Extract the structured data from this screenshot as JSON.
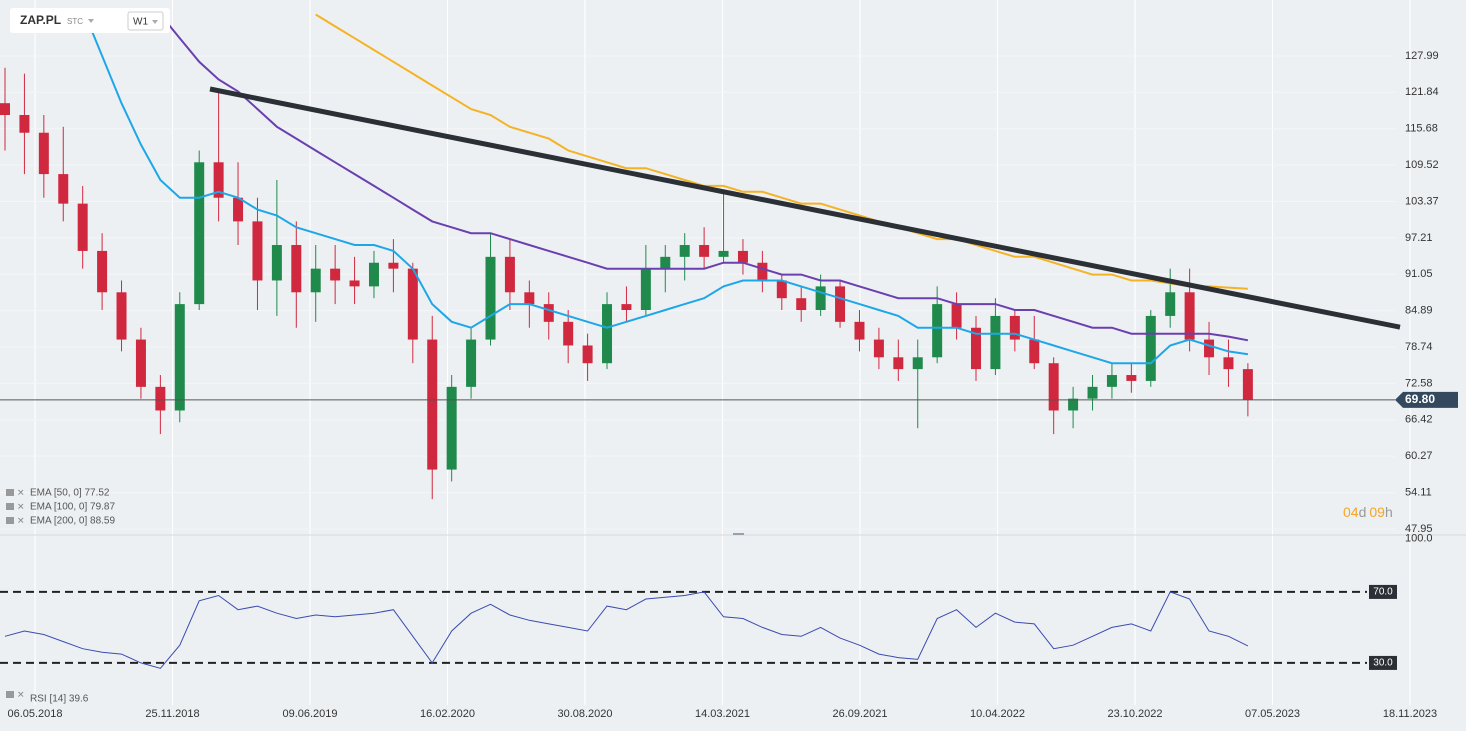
{
  "chart_data": [
    {
      "type": "candlestick",
      "symbol": "ZAP.PL",
      "exchange": "STC",
      "interval": "W1",
      "up_color": "#1f8a4c",
      "down_color": "#d0283f",
      "candles": [
        [
          120,
          126,
          112,
          118
        ],
        [
          118,
          125,
          108,
          115
        ],
        [
          115,
          118,
          104,
          108
        ],
        [
          108,
          116,
          100,
          103
        ],
        [
          103,
          106,
          92,
          95
        ],
        [
          95,
          98,
          85,
          88
        ],
        [
          88,
          90,
          78,
          80
        ],
        [
          80,
          82,
          70,
          72
        ],
        [
          72,
          74,
          64,
          68
        ],
        [
          68,
          88,
          66,
          86
        ],
        [
          86,
          112,
          85,
          110
        ],
        [
          110,
          122,
          100,
          104
        ],
        [
          104,
          110,
          96,
          100
        ],
        [
          100,
          104,
          85,
          90
        ],
        [
          90,
          107,
          84,
          96
        ],
        [
          96,
          100,
          82,
          88
        ],
        [
          88,
          96,
          83,
          92
        ],
        [
          92,
          96,
          86,
          90
        ],
        [
          90,
          94,
          86,
          89
        ],
        [
          89,
          95,
          87,
          93
        ],
        [
          93,
          97,
          88,
          92
        ],
        [
          92,
          93,
          76,
          80
        ],
        [
          80,
          84,
          53,
          58
        ],
        [
          58,
          74,
          56,
          72
        ],
        [
          72,
          82,
          70,
          80
        ],
        [
          80,
          98,
          79,
          94
        ],
        [
          94,
          97,
          85,
          88
        ],
        [
          88,
          90,
          82,
          86
        ],
        [
          86,
          88,
          80,
          83
        ],
        [
          83,
          85,
          76,
          79
        ],
        [
          79,
          81,
          73,
          76
        ],
        [
          76,
          88,
          75,
          86
        ],
        [
          86,
          89,
          83,
          85
        ],
        [
          85,
          96,
          84,
          92
        ],
        [
          92,
          96,
          88,
          94
        ],
        [
          94,
          98,
          90,
          96
        ],
        [
          96,
          99,
          92,
          94
        ],
        [
          94,
          105,
          93,
          95
        ],
        [
          95,
          97,
          91,
          93
        ],
        [
          93,
          95,
          88,
          90
        ],
        [
          90,
          91,
          85,
          87
        ],
        [
          87,
          89,
          83,
          85
        ],
        [
          85,
          91,
          84,
          89
        ],
        [
          89,
          90,
          82,
          83
        ],
        [
          83,
          85,
          78,
          80
        ],
        [
          80,
          82,
          75,
          77
        ],
        [
          77,
          80,
          73,
          75
        ],
        [
          75,
          80,
          65,
          77
        ],
        [
          77,
          89,
          76,
          86
        ],
        [
          86,
          88,
          80,
          82
        ],
        [
          82,
          84,
          73,
          75
        ],
        [
          75,
          87,
          74,
          84
        ],
        [
          84,
          85,
          78,
          80
        ],
        [
          80,
          84,
          75,
          76
        ],
        [
          76,
          77,
          64,
          68
        ],
        [
          68,
          72,
          65,
          70
        ],
        [
          70,
          74,
          68,
          72
        ],
        [
          72,
          76,
          70,
          74
        ],
        [
          74,
          76,
          71,
          73
        ],
        [
          73,
          85,
          72,
          84
        ],
        [
          84,
          92,
          82,
          88
        ],
        [
          88,
          92,
          78,
          80
        ],
        [
          80,
          83,
          74,
          77
        ],
        [
          77,
          80,
          72,
          75
        ],
        [
          75,
          76,
          67,
          69.8
        ]
      ],
      "series": [
        {
          "name": "EMA [50, 0] 77.52",
          "color": "#1ea7e8",
          "values": [
            null,
            null,
            null,
            null,
            136,
            128,
            120,
            113,
            107,
            104,
            104,
            105,
            104,
            102,
            101,
            99,
            98,
            97,
            96,
            96,
            95,
            92,
            86,
            83,
            82,
            84,
            86,
            86,
            85,
            84,
            83,
            82,
            83,
            84,
            85,
            86,
            87,
            89,
            90,
            90,
            90,
            89,
            88,
            87,
            86,
            85,
            84,
            82,
            82,
            82,
            81,
            81,
            81,
            80,
            79,
            78,
            77,
            76,
            76,
            76,
            79,
            80,
            79,
            78,
            77.52
          ]
        },
        {
          "name": "EMA [100, 0] 79.87",
          "color": "#6a3fb0",
          "values": [
            null,
            null,
            null,
            null,
            null,
            null,
            null,
            null,
            135,
            131,
            127,
            124,
            122,
            119,
            116,
            114,
            112,
            110,
            108,
            106,
            104,
            102,
            100,
            99,
            98,
            98,
            97,
            96,
            95,
            94,
            93,
            92,
            92,
            92,
            92,
            92,
            92,
            93,
            93,
            92,
            91,
            91,
            90,
            90,
            89,
            88,
            87,
            87,
            87,
            86,
            86,
            86,
            85,
            85,
            84,
            83,
            82,
            82,
            81,
            81,
            81,
            81,
            81,
            80.5,
            79.87
          ]
        },
        {
          "name": "EMA [200, 0] 88.59",
          "color": "#f5b324",
          "values": [
            null,
            null,
            null,
            null,
            null,
            null,
            null,
            null,
            null,
            null,
            null,
            null,
            null,
            null,
            null,
            null,
            135,
            133,
            131,
            129,
            127,
            125,
            123,
            121,
            119,
            118,
            116,
            115,
            114,
            112,
            111,
            110,
            109,
            109,
            108,
            107,
            106,
            106,
            105,
            105,
            104,
            103,
            103,
            102,
            101,
            100,
            99,
            98,
            97,
            97,
            96,
            95,
            94,
            94,
            93,
            92,
            91,
            91,
            90,
            90,
            89.5,
            89,
            89,
            88.8,
            88.59
          ]
        }
      ],
      "trendline": {
        "color": "#2b2f36",
        "values": [
          122.4,
          82.1
        ]
      },
      "ylim": [
        46.93,
        137.46
      ],
      "yticks": [
        127.99,
        121.84,
        115.68,
        109.52,
        103.37,
        97.21,
        91.05,
        84.89,
        78.74,
        72.58,
        66.42,
        60.27,
        54.11,
        47.95
      ],
      "last_price": {
        "value": 69.8,
        "label": "69.80"
      },
      "x_labels": [
        "06.05.2018",
        "25.11.2018",
        "09.06.2019",
        "16.02.2020",
        "30.08.2020",
        "14.03.2021",
        "26.09.2021",
        "10.04.2022",
        "23.10.2022",
        "07.05.2023",
        "18.11.2023"
      ],
      "timer": [
        "04",
        "d",
        "09",
        "h"
      ]
    },
    {
      "type": "line",
      "title": "RSI [14] 39.6",
      "color": "#3b4bb0",
      "values": [
        45,
        48,
        46,
        42,
        38,
        36,
        35,
        30,
        27,
        40,
        65,
        68,
        60,
        62,
        58,
        55,
        57,
        56,
        57,
        58,
        60,
        45,
        30,
        48,
        58,
        63,
        57,
        54,
        52,
        50,
        48,
        62,
        60,
        66,
        67,
        68,
        70,
        56,
        55,
        50,
        46,
        45,
        50,
        44,
        40,
        35,
        33,
        32,
        55,
        60,
        50,
        58,
        53,
        52,
        38,
        40,
        45,
        50,
        52,
        48,
        70,
        66,
        48,
        45,
        39.6
      ],
      "ylim": [
        6.3,
        101.5
      ],
      "yticks": [
        {
          "value": 100,
          "label": "100.0"
        }
      ],
      "levels": [
        {
          "value": 70,
          "label": "70.0"
        },
        {
          "value": 30,
          "label": "30.0"
        }
      ]
    }
  ]
}
